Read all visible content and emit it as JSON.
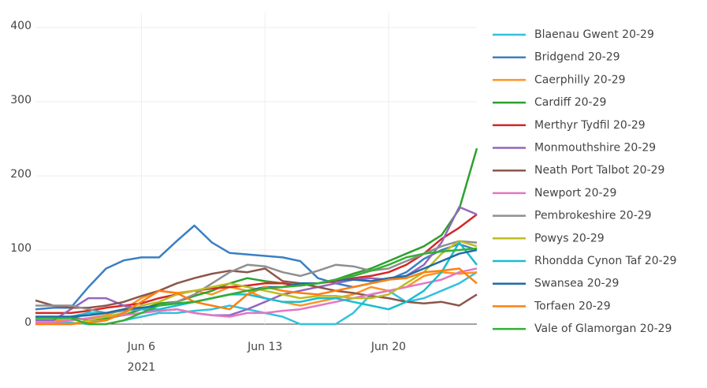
{
  "chart_data": {
    "type": "line",
    "x": [
      "2021-05-31",
      "2021-06-01",
      "2021-06-02",
      "2021-06-03",
      "2021-06-04",
      "2021-06-05",
      "2021-06-06",
      "2021-06-07",
      "2021-06-08",
      "2021-06-09",
      "2021-06-10",
      "2021-06-11",
      "2021-06-12",
      "2021-06-13",
      "2021-06-14",
      "2021-06-15",
      "2021-06-16",
      "2021-06-17",
      "2021-06-18",
      "2021-06-19",
      "2021-06-20",
      "2021-06-21",
      "2021-06-22",
      "2021-06-23",
      "2021-06-24",
      "2021-06-25"
    ],
    "xlim": [
      "2021-05-31",
      "2021-06-25"
    ],
    "xticks": [
      {
        "value": "2021-06-06",
        "label": "Jun 6"
      },
      {
        "value": "2021-06-13",
        "label": "Jun 13"
      },
      {
        "value": "2021-06-20",
        "label": "Jun 20"
      }
    ],
    "xtick_sublabel": "2021",
    "ylim": [
      -10,
      420
    ],
    "yticks": [
      0,
      100,
      200,
      300,
      400
    ],
    "grid": true,
    "series": [
      {
        "name": "Blaenau Gwent 20-29",
        "color": "#33c1dd",
        "values": [
          2,
          2,
          2,
          0,
          0,
          5,
          10,
          15,
          15,
          18,
          20,
          25,
          20,
          15,
          10,
          0,
          0,
          0,
          15,
          40,
          45,
          30,
          35,
          45,
          55,
          70
        ]
      },
      {
        "name": "Bridgend 20-29",
        "color": "#3b7fc4",
        "values": [
          20,
          22,
          22,
          50,
          75,
          86,
          90,
          90,
          112,
          133,
          110,
          96,
          94,
          92,
          90,
          85,
          62,
          55,
          50,
          55,
          60,
          70,
          88,
          100,
          108,
          100
        ]
      },
      {
        "name": "Caerphilly 20-29",
        "color": "#ff9326",
        "values": [
          5,
          5,
          5,
          8,
          12,
          20,
          35,
          45,
          42,
          45,
          40,
          50,
          45,
          35,
          30,
          25,
          30,
          35,
          40,
          50,
          45,
          50,
          65,
          70,
          68,
          70
        ]
      },
      {
        "name": "Cardiff 20-29",
        "color": "#2ca02c",
        "values": [
          10,
          10,
          10,
          5,
          8,
          12,
          20,
          28,
          30,
          38,
          45,
          55,
          62,
          58,
          55,
          52,
          55,
          60,
          68,
          75,
          85,
          95,
          105,
          120,
          155,
          237
        ]
      },
      {
        "name": "Merthyr Tydfil 20-29",
        "color": "#d62728",
        "values": [
          15,
          15,
          15,
          18,
          22,
          25,
          28,
          35,
          40,
          45,
          48,
          50,
          52,
          55,
          55,
          52,
          55,
          58,
          62,
          65,
          70,
          80,
          95,
          115,
          130,
          148
        ]
      },
      {
        "name": "Monmouthshire 20-29",
        "color": "#9467bd",
        "values": [
          5,
          5,
          20,
          35,
          35,
          25,
          20,
          18,
          20,
          15,
          12,
          12,
          20,
          30,
          40,
          45,
          50,
          55,
          60,
          62,
          60,
          65,
          80,
          110,
          158,
          148
        ]
      },
      {
        "name": "Neath Port Talbot 20-29",
        "color": "#8c564b",
        "values": [
          32,
          25,
          22,
          22,
          25,
          30,
          38,
          45,
          55,
          62,
          68,
          72,
          70,
          75,
          58,
          55,
          50,
          45,
          42,
          38,
          35,
          30,
          28,
          30,
          25,
          40
        ]
      },
      {
        "name": "Newport 20-29",
        "color": "#e377c2",
        "values": [
          2,
          2,
          5,
          8,
          10,
          12,
          15,
          18,
          20,
          15,
          12,
          10,
          15,
          15,
          18,
          20,
          25,
          30,
          35,
          40,
          45,
          50,
          55,
          60,
          70,
          75
        ]
      },
      {
        "name": "Pembrokeshire 20-29",
        "color": "#8f8f8f",
        "values": [
          25,
          25,
          25,
          20,
          15,
          18,
          20,
          25,
          30,
          40,
          55,
          70,
          80,
          78,
          70,
          65,
          72,
          80,
          78,
          72,
          75,
          85,
          95,
          105,
          112,
          110
        ]
      },
      {
        "name": "Powys 20-29",
        "color": "#bcbd22",
        "values": [
          0,
          0,
          0,
          5,
          10,
          15,
          25,
          30,
          40,
          45,
          50,
          55,
          50,
          45,
          40,
          35,
          38,
          38,
          35,
          35,
          40,
          55,
          70,
          95,
          112,
          105
        ]
      },
      {
        "name": "Rhondda Cynon Taf 20-29",
        "color": "#17becf",
        "values": [
          10,
          10,
          10,
          15,
          15,
          20,
          20,
          20,
          25,
          30,
          35,
          40,
          40,
          35,
          30,
          30,
          35,
          35,
          30,
          25,
          20,
          30,
          45,
          70,
          110,
          80
        ]
      },
      {
        "name": "Swansea 20-29",
        "color": "#1f6aa8",
        "values": [
          10,
          10,
          10,
          12,
          15,
          20,
          22,
          25,
          28,
          30,
          35,
          40,
          45,
          50,
          50,
          55,
          55,
          60,
          60,
          58,
          62,
          65,
          75,
          85,
          95,
          100
        ]
      },
      {
        "name": "Torfaen 20-29",
        "color": "#ff7f0e",
        "values": [
          0,
          0,
          0,
          2,
          5,
          15,
          30,
          45,
          42,
          30,
          25,
          20,
          40,
          50,
          45,
          42,
          40,
          45,
          50,
          55,
          60,
          62,
          70,
          72,
          75,
          55
        ]
      },
      {
        "name": "Vale of Glamorgan 20-29",
        "color": "#33b033",
        "values": [
          8,
          8,
          8,
          0,
          0,
          5,
          15,
          25,
          28,
          30,
          35,
          40,
          45,
          48,
          50,
          52,
          55,
          60,
          65,
          72,
          80,
          90,
          95,
          98,
          100,
          102
        ]
      }
    ]
  }
}
